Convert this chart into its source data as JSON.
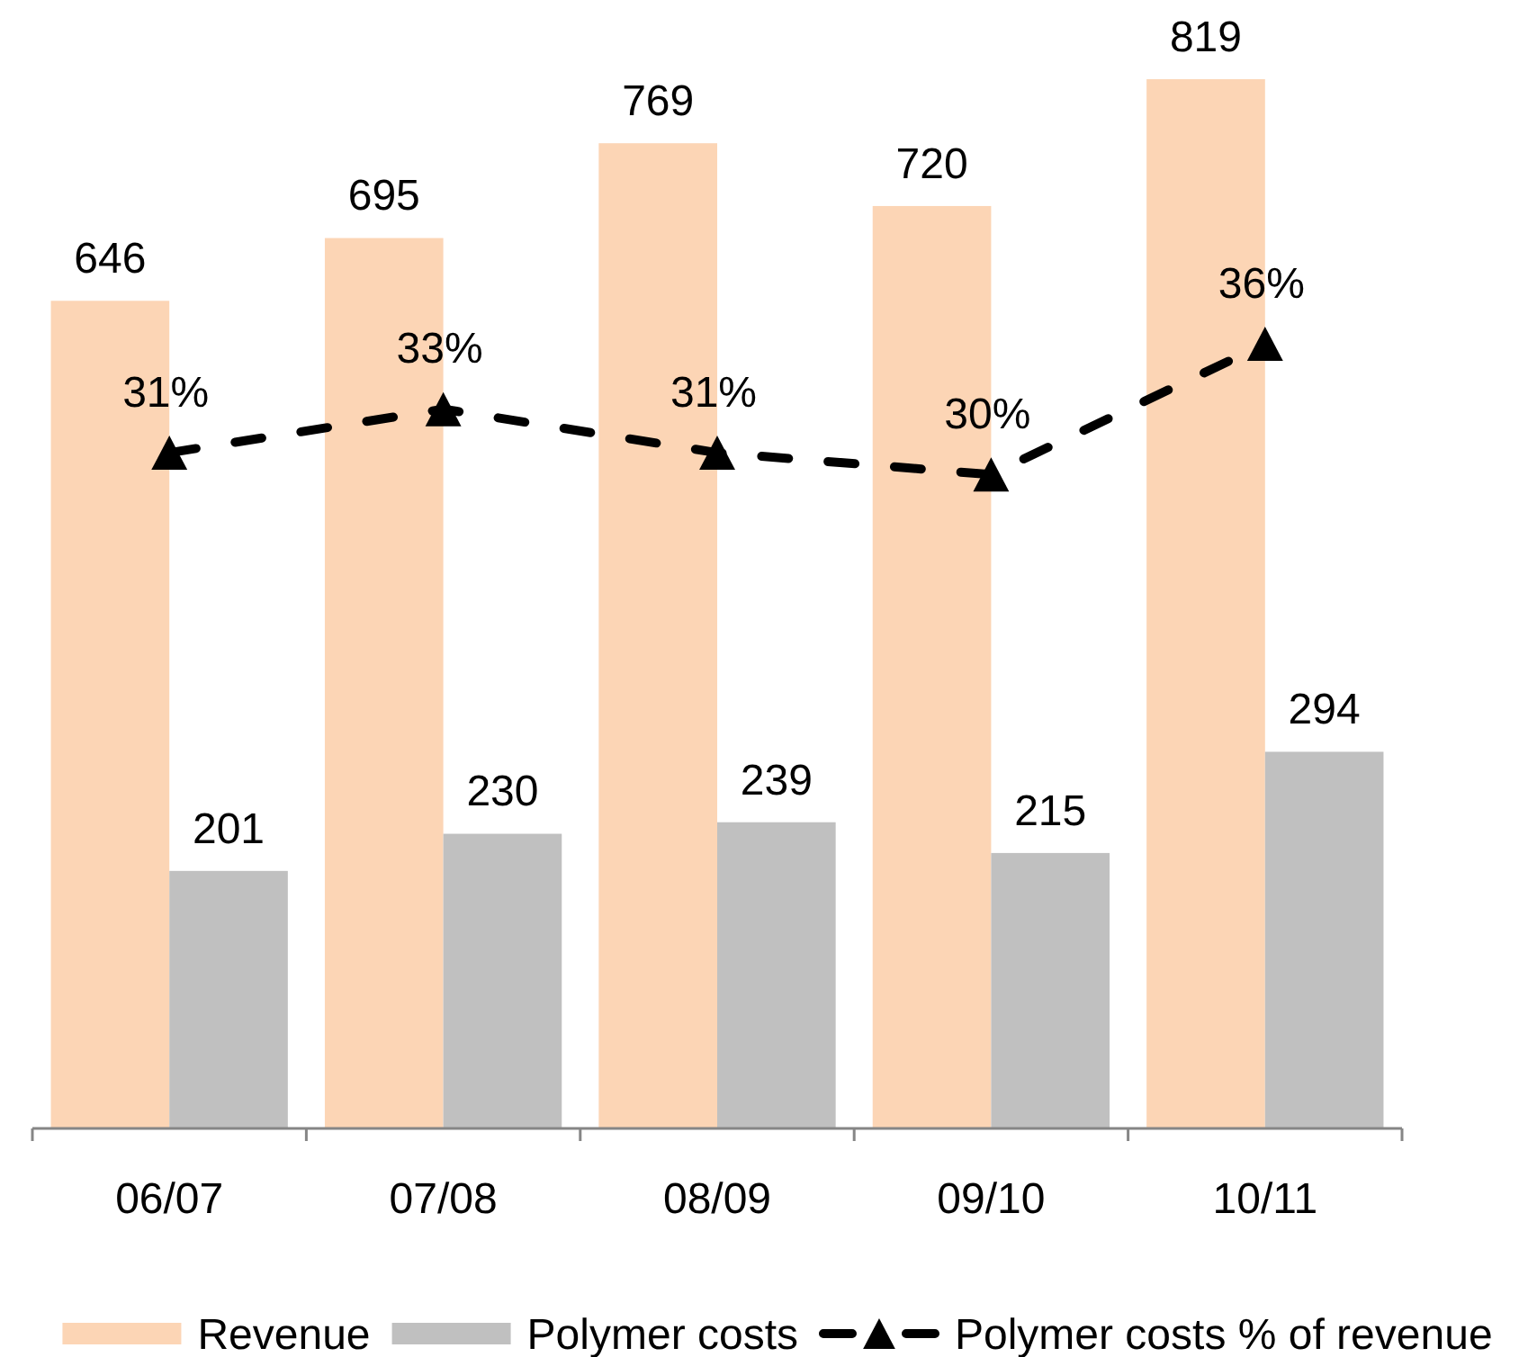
{
  "chart_data": {
    "type": "bar",
    "categories": [
      "06/07",
      "07/08",
      "08/09",
      "09/10",
      "10/11"
    ],
    "series": [
      {
        "name": "Revenue",
        "color": "#fcd5b5",
        "values": [
          646,
          695,
          769,
          720,
          819
        ],
        "value_labels": [
          "646",
          "695",
          "769",
          "720",
          "819"
        ]
      },
      {
        "name": "Polymer costs",
        "color": "#c0c0c0",
        "values": [
          201,
          230,
          239,
          215,
          294
        ],
        "value_labels": [
          "201",
          "230",
          "239",
          "215",
          "294"
        ]
      },
      {
        "name": "Polymer costs % of revenue",
        "type": "line",
        "axis": "y2",
        "color": "#000000",
        "values": [
          31,
          33,
          31,
          30,
          36
        ],
        "value_labels": [
          "31%",
          "33%",
          "31%",
          "30%",
          "36%"
        ],
        "marker": "triangle",
        "line_style": "dashed"
      }
    ],
    "tick_labels": "x",
    "legend": "bottom"
  }
}
